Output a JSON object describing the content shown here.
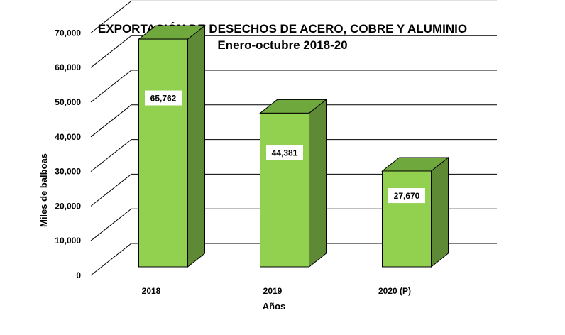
{
  "chart_data": {
    "type": "bar",
    "title": "EXPORTACIÓN DE DESECHOS DE ACERO, COBRE Y ALUMINIO",
    "subtitle": "Enero-octubre 2018-20",
    "xlabel": "Años",
    "ylabel": "Miles de balboas",
    "categories": [
      "2018",
      "2019",
      "2020 (P)"
    ],
    "values": [
      65762,
      44381,
      27670
    ],
    "data_labels": [
      "65,762",
      "44,381",
      "27,670"
    ],
    "ylim": [
      0,
      70000
    ],
    "yticks": [
      0,
      10000,
      20000,
      30000,
      40000,
      50000,
      60000,
      70000
    ],
    "ytick_labels": [
      "0",
      "10,000",
      "20,000",
      "30,000",
      "40,000",
      "50,000",
      "60,000",
      "70,000"
    ],
    "grid": true,
    "legend": "none",
    "style": "3d",
    "colors": {
      "bar_front": "#92d050",
      "bar_side": "#5f8a35",
      "bar_top": "#6fa83c",
      "gridline": "#000000"
    }
  }
}
